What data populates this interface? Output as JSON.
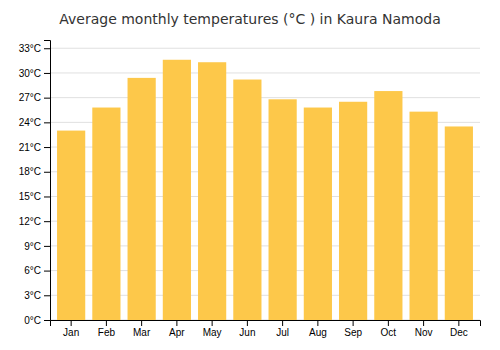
{
  "chart_data": {
    "type": "bar",
    "title": "Average monthly temperatures (°C ) in Kaura Namoda",
    "categories": [
      "Jan",
      "Feb",
      "Mar",
      "Apr",
      "May",
      "Jun",
      "Jul",
      "Aug",
      "Sep",
      "Oct",
      "Nov",
      "Dec"
    ],
    "values": [
      23.0,
      25.8,
      29.4,
      31.6,
      31.3,
      29.2,
      26.8,
      25.8,
      26.5,
      27.8,
      25.3,
      23.5
    ],
    "color": "#FDC84A",
    "ylim": [
      0,
      34
    ],
    "yticks": [
      {
        "value": 0,
        "label": "0°C"
      },
      {
        "value": 3,
        "label": "3°C"
      },
      {
        "value": 6,
        "label": "6°C"
      },
      {
        "value": 9,
        "label": "9°C"
      },
      {
        "value": 12,
        "label": "12°C"
      },
      {
        "value": 15,
        "label": "15°C"
      },
      {
        "value": 18,
        "label": "18°C"
      },
      {
        "value": 21,
        "label": "21°C"
      },
      {
        "value": 24,
        "label": "24°C"
      },
      {
        "value": 27,
        "label": "27°C"
      },
      {
        "value": 30,
        "label": "30°C"
      },
      {
        "value": 33,
        "label": "33°C"
      }
    ],
    "grid": true
  }
}
